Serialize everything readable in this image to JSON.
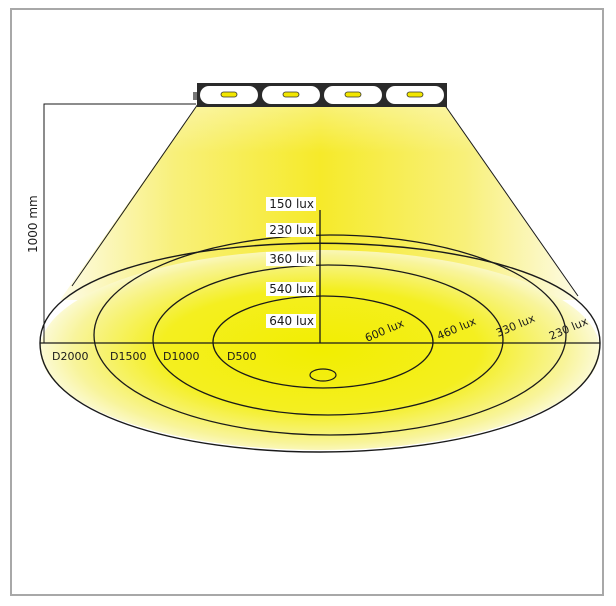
{
  "colors": {
    "frame_border": "#a8a8a8",
    "light_center": "#f2ee00",
    "light_edge": "#fbfbe0",
    "beam_core": "#f7ec2a",
    "line": "#1a1a1a"
  },
  "height_label": "1000 mm",
  "center_labels": [
    "150 lux",
    "230 lux",
    "360 lux",
    "540 lux",
    "640 lux"
  ],
  "diagonal_labels": [
    "600 lux",
    "460 lux",
    "330 lux",
    "230 lux"
  ],
  "diameter_labels": [
    "D2000",
    "D1500",
    "D1000",
    "D500"
  ],
  "luminaire": {
    "modules": 4,
    "icon": "light-module-icon"
  }
}
